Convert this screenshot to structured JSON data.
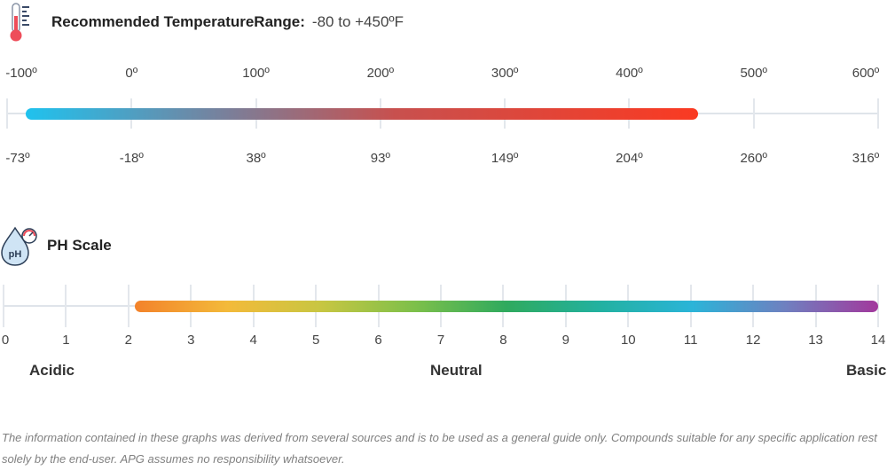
{
  "temperature": {
    "label": "Recommended TemperatureRange:",
    "value": "-80 to +450ºF",
    "icon": "thermometer-icon",
    "fahrenheit_labels": [
      "-100º",
      "0º",
      "100º",
      "200º",
      "300º",
      "400º",
      "500º",
      "600º"
    ],
    "celsius_labels": [
      "-73º",
      "-18º",
      "38º",
      "93º",
      "149º",
      "204º",
      "260º",
      "316º"
    ],
    "range_f": [
      -80,
      450
    ],
    "axis_f": [
      -100,
      600
    ],
    "colors": {
      "start": "#1fc2ee",
      "end": "#fa3a22"
    }
  },
  "ph": {
    "label": "PH Scale",
    "icon": "ph-drop-icon",
    "icon_text": "pH",
    "tick_labels": [
      "0",
      "1",
      "2",
      "3",
      "4",
      "5",
      "6",
      "7",
      "8",
      "9",
      "10",
      "11",
      "12",
      "13",
      "14"
    ],
    "range": [
      2.1,
      14
    ],
    "axis": [
      0,
      14
    ],
    "words": {
      "acidic": "Acidic",
      "neutral": "Neutral",
      "basic": "Basic"
    },
    "colors": [
      "#f3822a",
      "#f3ba3a",
      "#c8c642",
      "#7ec04a",
      "#2faa5e",
      "#22b1a0",
      "#2bb4d8",
      "#6f80c0",
      "#a2389c"
    ]
  },
  "disclaimer": "The information contained in these graphs was derived from several sources and is to be used as a general guide only. Compounds suitable for any specific application rest solely by the end-user. APG assumes no responsibility whatsoever."
}
